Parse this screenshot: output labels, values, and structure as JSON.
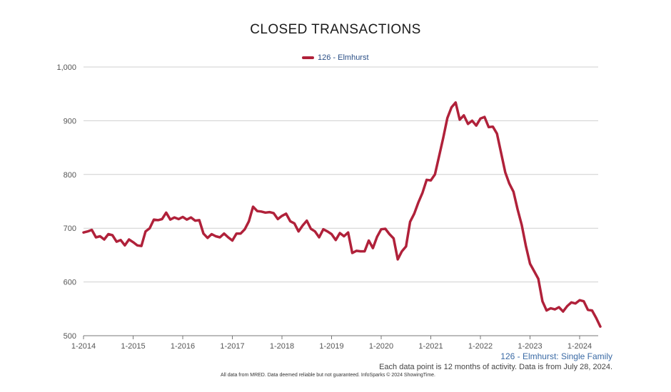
{
  "chart_data": {
    "type": "line",
    "title": "CLOSED TRANSACTIONS",
    "legend": "126 - Elmhurst",
    "legend_placement": "top-center",
    "grid": true,
    "ylim": [
      500,
      1000
    ],
    "y_ticks": [
      "500",
      "600",
      "700",
      "800",
      "900",
      "1,000"
    ],
    "y_tick_values": [
      500,
      600,
      700,
      800,
      900,
      1000
    ],
    "x_ticks": [
      "1-2014",
      "1-2015",
      "1-2016",
      "1-2017",
      "1-2018",
      "1-2019",
      "1-2020",
      "1-2021",
      "1-2022",
      "1-2023",
      "1-2024"
    ],
    "x_start": "1-2014",
    "x_end": "6-2024",
    "series": [
      {
        "name": "126 - Elmhurst",
        "color": "#b0213a",
        "values": [
          692,
          694,
          697,
          683,
          685,
          679,
          689,
          687,
          675,
          678,
          668,
          679,
          674,
          668,
          667,
          694,
          700,
          716,
          715,
          717,
          729,
          716,
          720,
          717,
          721,
          716,
          720,
          714,
          715,
          690,
          682,
          689,
          685,
          683,
          690,
          683,
          677,
          690,
          690,
          698,
          713,
          740,
          732,
          731,
          729,
          730,
          728,
          717,
          723,
          727,
          713,
          709,
          694,
          705,
          714,
          699,
          694,
          683,
          698,
          694,
          689,
          678,
          691,
          685,
          692,
          654,
          658,
          657,
          657,
          677,
          663,
          684,
          698,
          699,
          689,
          681,
          642,
          657,
          666,
          712,
          727,
          748,
          766,
          790,
          789,
          800,
          834,
          868,
          905,
          925,
          934,
          902,
          910,
          894,
          900,
          891,
          904,
          907,
          888,
          889,
          876,
          840,
          804,
          783,
          768,
          735,
          706,
          667,
          634,
          620,
          606,
          564,
          547,
          551,
          549,
          553,
          545,
          555,
          562,
          560,
          566,
          564,
          548,
          547,
          533,
          517
        ]
      }
    ]
  },
  "sub_label": "126 - Elmhurst: Single Family",
  "note": "Each data point is 12 months of activity. Data is from July 28, 2024.",
  "footer": "All data from MRED. Data deemed reliable but not guaranteed. InfoSparks © 2024 ShowingTime."
}
